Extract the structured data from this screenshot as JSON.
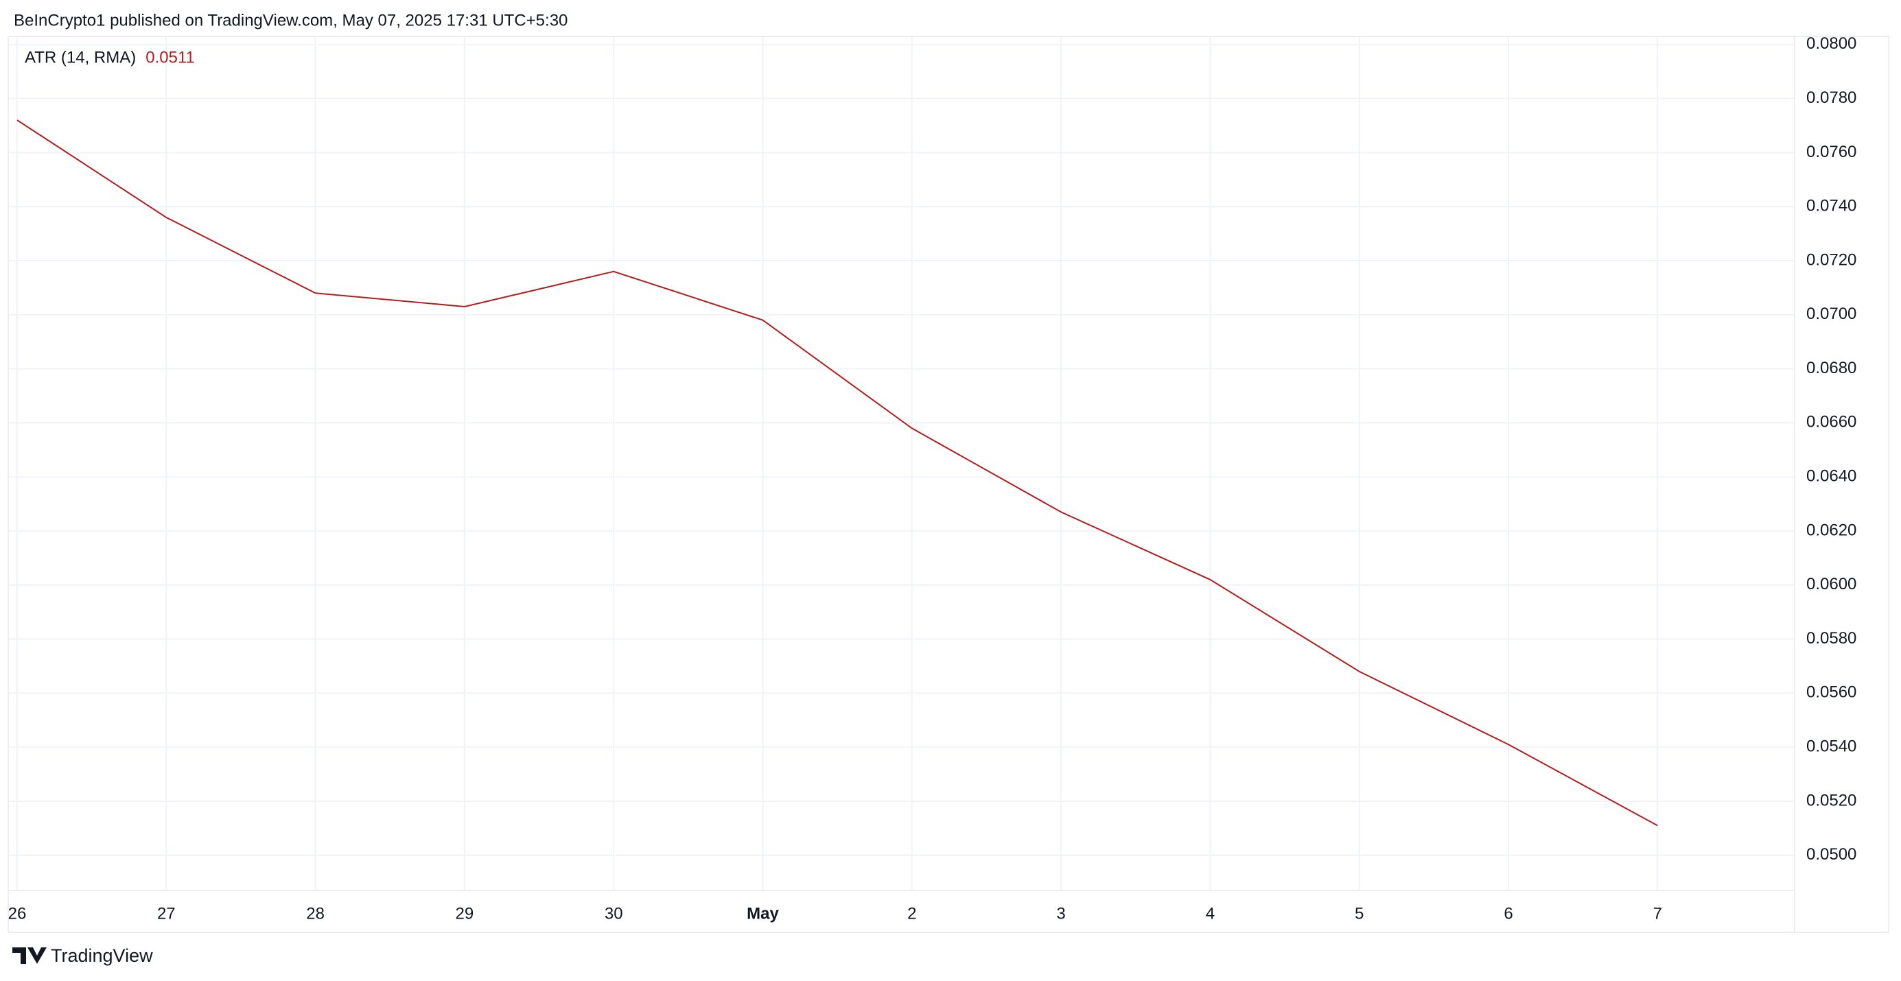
{
  "header": "BeInCrypto1 published on TradingView.com, May 07, 2025 17:31 UTC+5:30",
  "footer": "TradingView",
  "chart_data": {
    "type": "line",
    "categories": [
      "26",
      "27",
      "28",
      "29",
      "30",
      "May",
      "2",
      "3",
      "4",
      "5",
      "6",
      "7"
    ],
    "series": [
      {
        "name": "ATR (14, RMA)",
        "color": "#b71c1c",
        "values": [
          0.0772,
          0.0736,
          0.0708,
          0.0703,
          0.0716,
          0.0698,
          0.0658,
          0.0627,
          0.0602,
          0.0568,
          0.0541,
          0.0511
        ]
      }
    ],
    "legend_value": "0.0511",
    "ylim": [
      0.0487,
      0.0803
    ],
    "yticks": [
      {
        "value": 0.05,
        "label": "0.0500"
      },
      {
        "value": 0.052,
        "label": "0.0520"
      },
      {
        "value": 0.054,
        "label": "0.0540"
      },
      {
        "value": 0.056,
        "label": "0.0560"
      },
      {
        "value": 0.058,
        "label": "0.0580"
      },
      {
        "value": 0.06,
        "label": "0.0600"
      },
      {
        "value": 0.062,
        "label": "0.0620"
      },
      {
        "value": 0.064,
        "label": "0.0640"
      },
      {
        "value": 0.066,
        "label": "0.0660"
      },
      {
        "value": 0.068,
        "label": "0.0680"
      },
      {
        "value": 0.07,
        "label": "0.0700"
      },
      {
        "value": 0.072,
        "label": "0.0720"
      },
      {
        "value": 0.074,
        "label": "0.0740"
      },
      {
        "value": 0.076,
        "label": "0.0760"
      },
      {
        "value": 0.078,
        "label": "0.0780"
      },
      {
        "value": 0.08,
        "label": "0.0800"
      }
    ],
    "grid": true
  }
}
